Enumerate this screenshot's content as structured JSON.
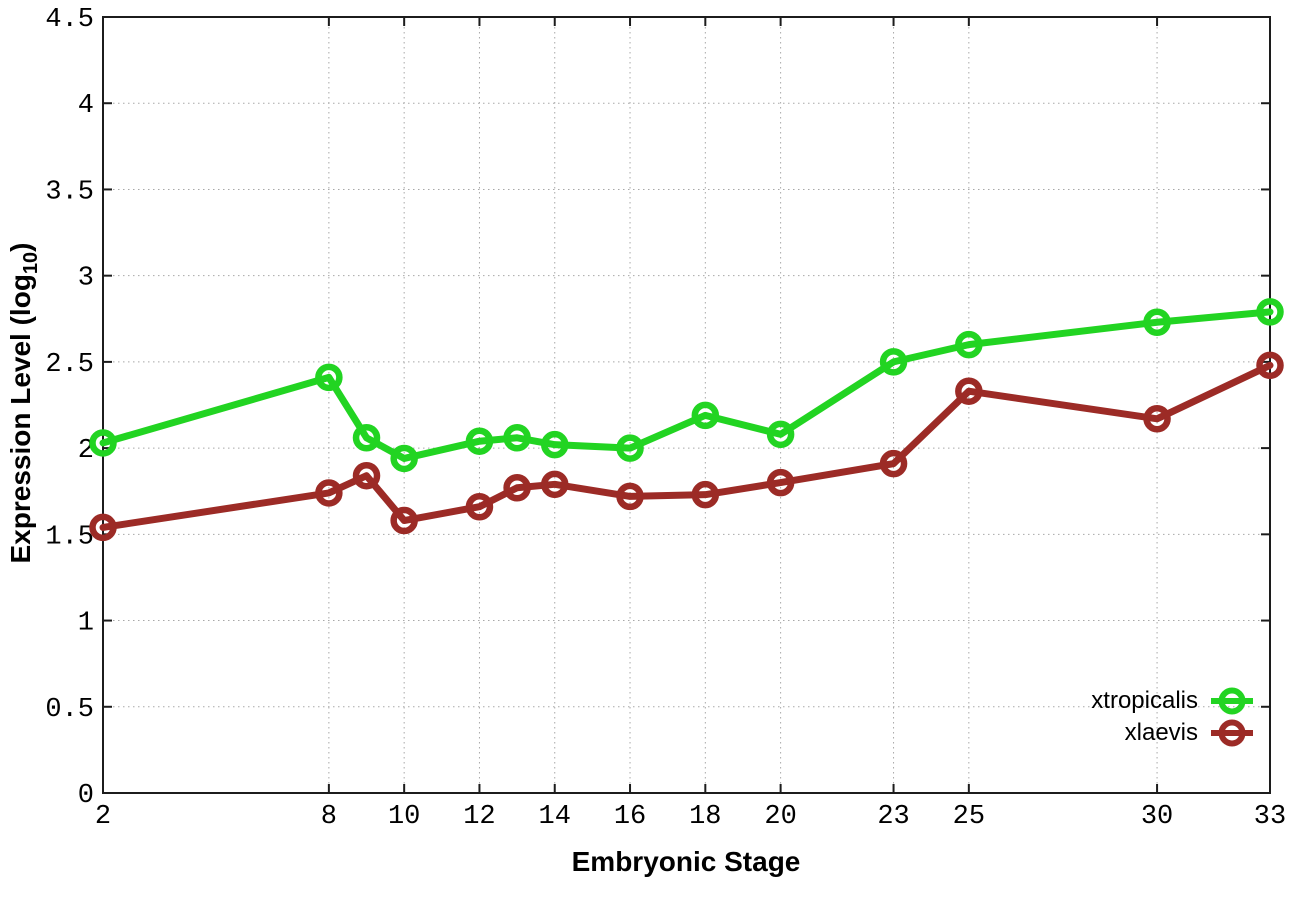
{
  "figure": {
    "xlabel": "Embryonic Stage",
    "ylabel_parts": {
      "pre": "Expression Level (log",
      "sub": "10",
      "post": ")"
    }
  },
  "chart_data": {
    "type": "line",
    "title": "",
    "xlabel": "Embryonic Stage",
    "ylabel": "Expression Level (log10)",
    "x": [
      2,
      8,
      9,
      10,
      12,
      13,
      14,
      16,
      18,
      20,
      23,
      25,
      30,
      33
    ],
    "x_ticks": [
      2,
      8,
      10,
      12,
      14,
      16,
      18,
      20,
      23,
      25,
      30,
      33
    ],
    "y_ticks": [
      0,
      0.5,
      1,
      1.5,
      2,
      2.5,
      3,
      3.5,
      4,
      4.5
    ],
    "xlim": [
      2,
      33
    ],
    "ylim": [
      0,
      4.5
    ],
    "grid": true,
    "legend_position": "bottom-right",
    "marker": "open-circle",
    "series": [
      {
        "name": "xtropicalis",
        "color": "#22d422",
        "values": [
          2.03,
          2.41,
          2.06,
          1.94,
          2.04,
          2.06,
          2.02,
          2.0,
          2.19,
          2.08,
          2.5,
          2.6,
          2.73,
          2.79
        ]
      },
      {
        "name": "xlaevis",
        "color": "#9c2b26",
        "values": [
          1.54,
          1.74,
          1.84,
          1.58,
          1.66,
          1.77,
          1.79,
          1.72,
          1.73,
          1.8,
          1.91,
          2.33,
          2.17,
          2.48
        ]
      }
    ],
    "style": {
      "border_color": "#1c1c1c",
      "grid_color": "#a8a8a8",
      "tick_label_color": "#000000"
    }
  }
}
